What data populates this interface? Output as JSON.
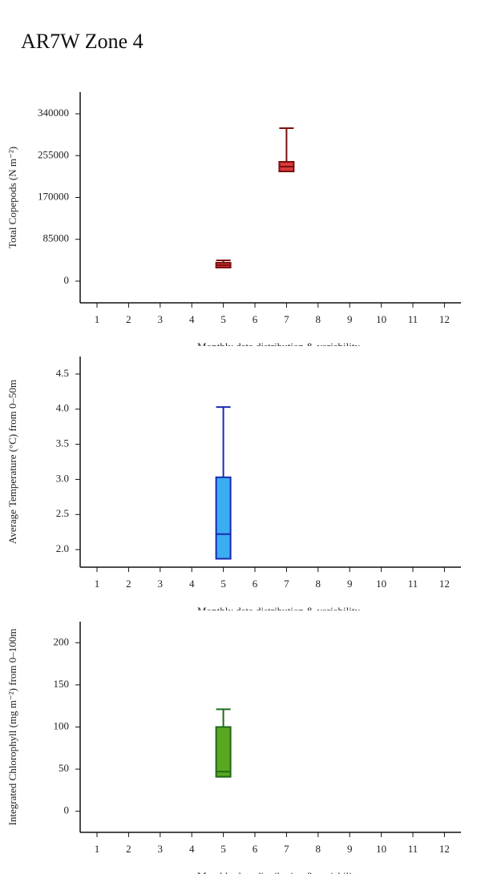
{
  "page": {
    "title": "AR7W Zone 4"
  },
  "chart_data": [
    {
      "type": "box",
      "ylabel": "Total Copepods (N m⁻²)",
      "xlabel": "Monthly data distribution & variability",
      "categories": [
        "1",
        "2",
        "3",
        "4",
        "5",
        "6",
        "7",
        "8",
        "9",
        "10",
        "11",
        "12"
      ],
      "min": [
        null,
        null,
        null,
        null,
        27700,
        null,
        222900,
        null,
        null,
        null,
        null,
        null
      ],
      "q1": [
        null,
        null,
        null,
        null,
        27700,
        null,
        222900,
        null,
        null,
        null,
        null,
        null
      ],
      "median": [
        null,
        null,
        null,
        null,
        32500,
        null,
        232600,
        null,
        null,
        null,
        null,
        null
      ],
      "q3": [
        null,
        null,
        null,
        null,
        37400,
        null,
        242400,
        null,
        null,
        null,
        null,
        null
      ],
      "max": [
        null,
        null,
        null,
        null,
        42300,
        null,
        310700,
        null,
        null,
        null,
        null,
        null
      ],
      "fill": "#d93a3a",
      "stroke": "#7a1010",
      "ylim": [
        -44000,
        384000
      ],
      "yticks": [
        0,
        85000,
        170000,
        255000,
        340000
      ]
    },
    {
      "type": "box",
      "ylabel": "Average Temperature (°C) from 0–50m",
      "xlabel": "Monthly data distribution & variability",
      "categories": [
        "1",
        "2",
        "3",
        "4",
        "5",
        "6",
        "7",
        "8",
        "9",
        "10",
        "11",
        "12"
      ],
      "min": [
        null,
        null,
        null,
        null,
        1.87,
        null,
        null,
        null,
        null,
        null,
        null,
        null
      ],
      "q1": [
        null,
        null,
        null,
        null,
        1.87,
        null,
        null,
        null,
        null,
        null,
        null,
        null
      ],
      "median": [
        null,
        null,
        null,
        null,
        2.22,
        null,
        null,
        null,
        null,
        null,
        null,
        null
      ],
      "q3": [
        null,
        null,
        null,
        null,
        3.03,
        null,
        null,
        null,
        null,
        null,
        null,
        null
      ],
      "max": [
        null,
        null,
        null,
        null,
        4.03,
        null,
        null,
        null,
        null,
        null,
        null,
        null
      ],
      "fill": "#3aaef0",
      "stroke": "#1a2ab0",
      "ylim": [
        1.75,
        4.75
      ],
      "yticks": [
        {
          "value": 2,
          "label": "2.0"
        },
        2.5,
        {
          "value": 3,
          "label": "3.0"
        },
        3.5,
        {
          "value": 4,
          "label": "4.0"
        },
        4.5
      ]
    },
    {
      "type": "box",
      "ylabel": "Integrated Chlorophyll (mg m⁻²) from 0–100m",
      "xlabel": "Monthly data distribution & variability",
      "categories": [
        "1",
        "2",
        "3",
        "4",
        "5",
        "6",
        "7",
        "8",
        "9",
        "10",
        "11",
        "12"
      ],
      "min": [
        null,
        null,
        null,
        null,
        41,
        null,
        null,
        null,
        null,
        null,
        null,
        null
      ],
      "q1": [
        null,
        null,
        null,
        null,
        41,
        null,
        null,
        null,
        null,
        null,
        null,
        null
      ],
      "median": [
        null,
        null,
        null,
        null,
        47,
        null,
        null,
        null,
        null,
        null,
        null,
        null
      ],
      "q3": [
        null,
        null,
        null,
        null,
        100,
        null,
        null,
        null,
        null,
        null,
        null,
        null
      ],
      "max": [
        null,
        null,
        null,
        null,
        121,
        null,
        null,
        null,
        null,
        null,
        null,
        null
      ],
      "fill": "#5aa820",
      "stroke": "#1f6a1a",
      "ylim": [
        -25,
        225
      ],
      "yticks": [
        0,
        50,
        100,
        150,
        200
      ]
    }
  ]
}
